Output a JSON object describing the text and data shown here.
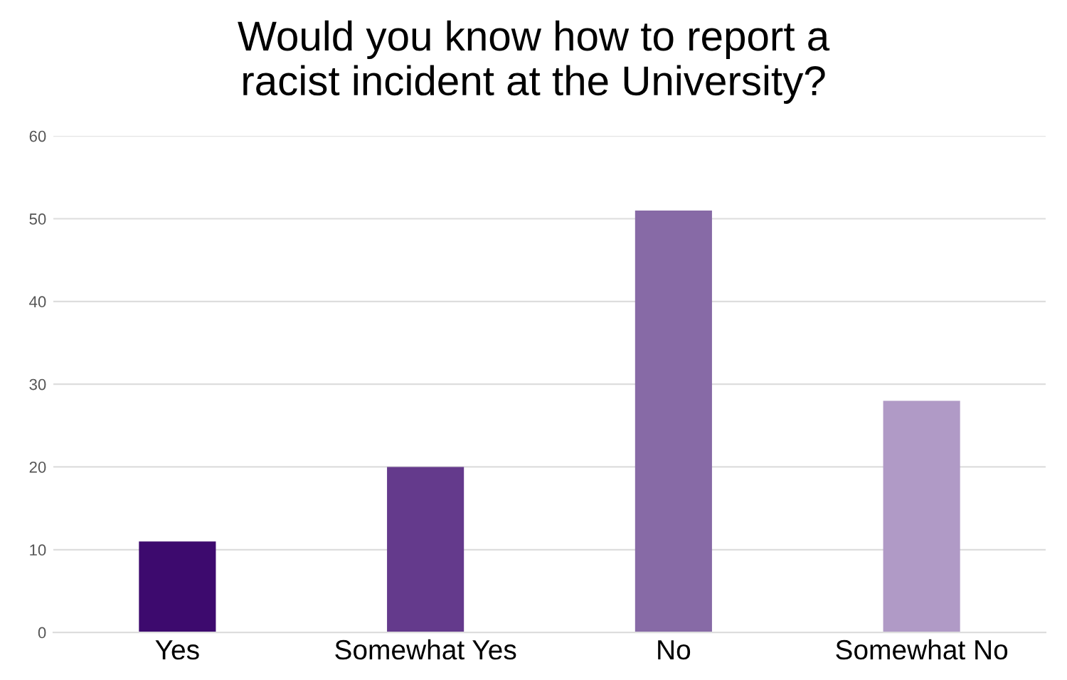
{
  "chart_data": {
    "type": "bar",
    "title": "Would you know how to report a\nracist incident at the University?",
    "categories": [
      "Yes",
      "Somewhat Yes",
      "No",
      "Somewhat No"
    ],
    "values": [
      11,
      20,
      51,
      28
    ],
    "colors": [
      "#3d0a6e",
      "#643a8c",
      "#876aa6",
      "#b09ac6"
    ],
    "ylim": [
      0,
      60
    ],
    "yticks": [
      0,
      10,
      20,
      30,
      40,
      50,
      60
    ],
    "grid": "y"
  }
}
